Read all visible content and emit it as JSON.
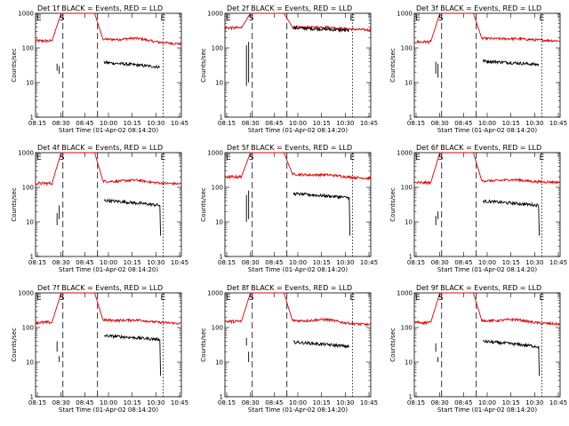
{
  "chart_data": {
    "type": "line",
    "layout": "3x3 grid of panels",
    "y_scale": "log",
    "ylim": [
      1,
      1000
    ],
    "ylabel": "Counts/sec",
    "xlabel": "Start Time (01-Apr-02 08:14:20)",
    "x_tick_labels": [
      "08:15",
      "08:30",
      "08:45",
      "10:00",
      "10:15",
      "10:30",
      "10:45"
    ],
    "y_tick_labels": [
      "1",
      "10",
      "100",
      "1000"
    ],
    "markers": {
      "start": "S",
      "end": "E"
    },
    "colors": {
      "events": "#000000",
      "lld": "#dd0000"
    },
    "panels": [
      {
        "title": "Det 1f BLACK = Events, RED = LLD",
        "lld": {
          "pre": 160,
          "post_start": 180,
          "post_end": 130,
          "hump": 190
        },
        "events_pre": {
          "segments": [
            [
              22,
              35
            ],
            [
              18,
              30
            ]
          ]
        },
        "events_post": {
          "start": 38,
          "end": 28,
          "tail_drop": false
        }
      },
      {
        "title": "Det 2f BLACK = Events, RED = LLD",
        "lld": {
          "pre": 380,
          "post_start": 400,
          "post_end": 330,
          "hump": 400
        },
        "events_pre": {
          "segments": [
            [
              120,
              8
            ],
            [
              150,
              10
            ]
          ]
        },
        "events_post": {
          "start": 380,
          "end": 320,
          "tail_drop": false
        }
      },
      {
        "title": "Det 3f BLACK = Events, RED = LLD",
        "lld": {
          "pre": 150,
          "post_start": 190,
          "post_end": 160,
          "hump": 185
        },
        "events_pre": {
          "segments": [
            [
              18,
              40
            ],
            [
              14,
              35
            ]
          ]
        },
        "events_post": {
          "start": 42,
          "end": 33,
          "tail_drop": false
        }
      },
      {
        "title": "Det 4f BLACK = Events, RED = LLD",
        "lld": {
          "pre": 130,
          "post_start": 150,
          "post_end": 125,
          "hump": 160
        },
        "events_pre": {
          "segments": [
            [
              18,
              8
            ],
            [
              12,
              30
            ]
          ]
        },
        "events_post": {
          "start": 42,
          "end": 30,
          "tail_drop": true
        }
      },
      {
        "title": "Det 5f BLACK = Events, RED = LLD",
        "lld": {
          "pre": 200,
          "post_start": 240,
          "post_end": 180,
          "hump": 230
        },
        "events_pre": {
          "segments": [
            [
              60,
              10
            ],
            [
              80,
              12
            ]
          ]
        },
        "events_post": {
          "start": 65,
          "end": 50,
          "tail_drop": true
        }
      },
      {
        "title": "Det 6f BLACK = Events, RED = LLD",
        "lld": {
          "pre": 135,
          "post_start": 155,
          "post_end": 140,
          "hump": 165
        },
        "events_pre": {
          "segments": [
            [
              15,
              8
            ],
            [
              20,
              12
            ]
          ]
        },
        "events_post": {
          "start": 40,
          "end": 30,
          "tail_drop": true
        }
      },
      {
        "title": "Det 7f BLACK = Events, RED = LLD",
        "lld": {
          "pre": 140,
          "post_start": 165,
          "post_end": 130,
          "hump": 165
        },
        "events_pre": {
          "segments": [
            [
              20,
              40
            ],
            [
              15,
              10
            ]
          ]
        },
        "events_post": {
          "start": 58,
          "end": 45,
          "tail_drop": true
        }
      },
      {
        "title": "Det 8f BLACK = Events, RED = LLD",
        "lld": {
          "pre": 150,
          "post_start": 160,
          "post_end": 120,
          "hump": 170
        },
        "events_pre": {
          "segments": [
            [
              30,
              50
            ],
            [
              20,
              10
            ]
          ]
        },
        "events_post": {
          "start": 38,
          "end": 28,
          "tail_drop": false
        }
      },
      {
        "title": "Det 9f BLACK = Events, RED = LLD",
        "lld": {
          "pre": 140,
          "post_start": 160,
          "post_end": 125,
          "hump": 170
        },
        "events_pre": {
          "segments": [
            [
              20,
              35
            ],
            [
              14,
              10
            ]
          ]
        },
        "events_post": {
          "start": 40,
          "end": 28,
          "tail_drop": true
        }
      }
    ]
  }
}
